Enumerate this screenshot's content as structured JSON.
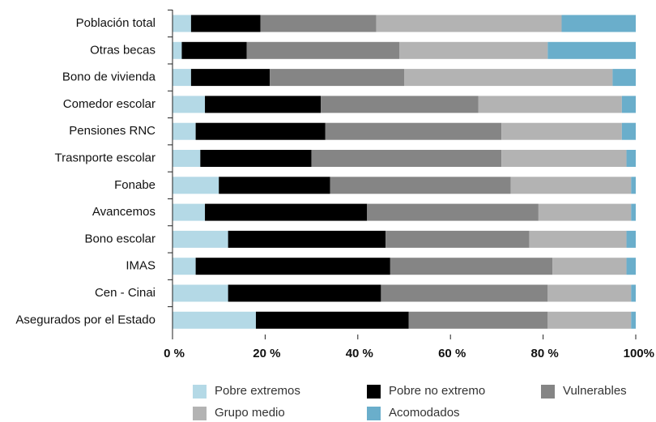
{
  "chart_data": {
    "type": "stacked_barh",
    "categories": [
      "Población total",
      "Otras becas",
      "Bono de vivienda",
      "Comedor escolar",
      "Pensiones RNC",
      "Trasnporte escolar",
      "Fonabe",
      "Avancemos",
      "Bono escolar",
      "IMAS",
      "Cen - Cinai",
      "Asegurados por el Estado"
    ],
    "series": [
      {
        "name": "Pobre extremos",
        "color": "#b4d9e6",
        "values": [
          4,
          2,
          4,
          7,
          5,
          6,
          10,
          7,
          12,
          5,
          12,
          18
        ]
      },
      {
        "name": "Pobre no extremo",
        "color": "#000000",
        "values": [
          15,
          14,
          17,
          25,
          28,
          24,
          24,
          35,
          34,
          42,
          33,
          33
        ]
      },
      {
        "name": "Vulnerables",
        "color": "#858585",
        "values": [
          25,
          33,
          29,
          34,
          38,
          41,
          39,
          37,
          31,
          35,
          36,
          30
        ]
      },
      {
        "name": "Grupo medio",
        "color": "#b3b3b3",
        "values": [
          40,
          32,
          45,
          31,
          26,
          27,
          26,
          20,
          21,
          16,
          18,
          18
        ]
      },
      {
        "name": "Acomodados",
        "color": "#6aaecb",
        "values": [
          16,
          19,
          5,
          3,
          3,
          2,
          1,
          1,
          2,
          2,
          1,
          1
        ]
      }
    ],
    "xlim": [
      0,
      100
    ],
    "xticks": [
      {
        "value": 0,
        "label": "0 %"
      },
      {
        "value": 20,
        "label": "20 %"
      },
      {
        "value": 40,
        "label": "40 %"
      },
      {
        "value": 60,
        "label": "60 %"
      },
      {
        "value": 80,
        "label": "80 %"
      },
      {
        "value": 100,
        "label": "100%"
      }
    ],
    "legend": "bottom"
  }
}
